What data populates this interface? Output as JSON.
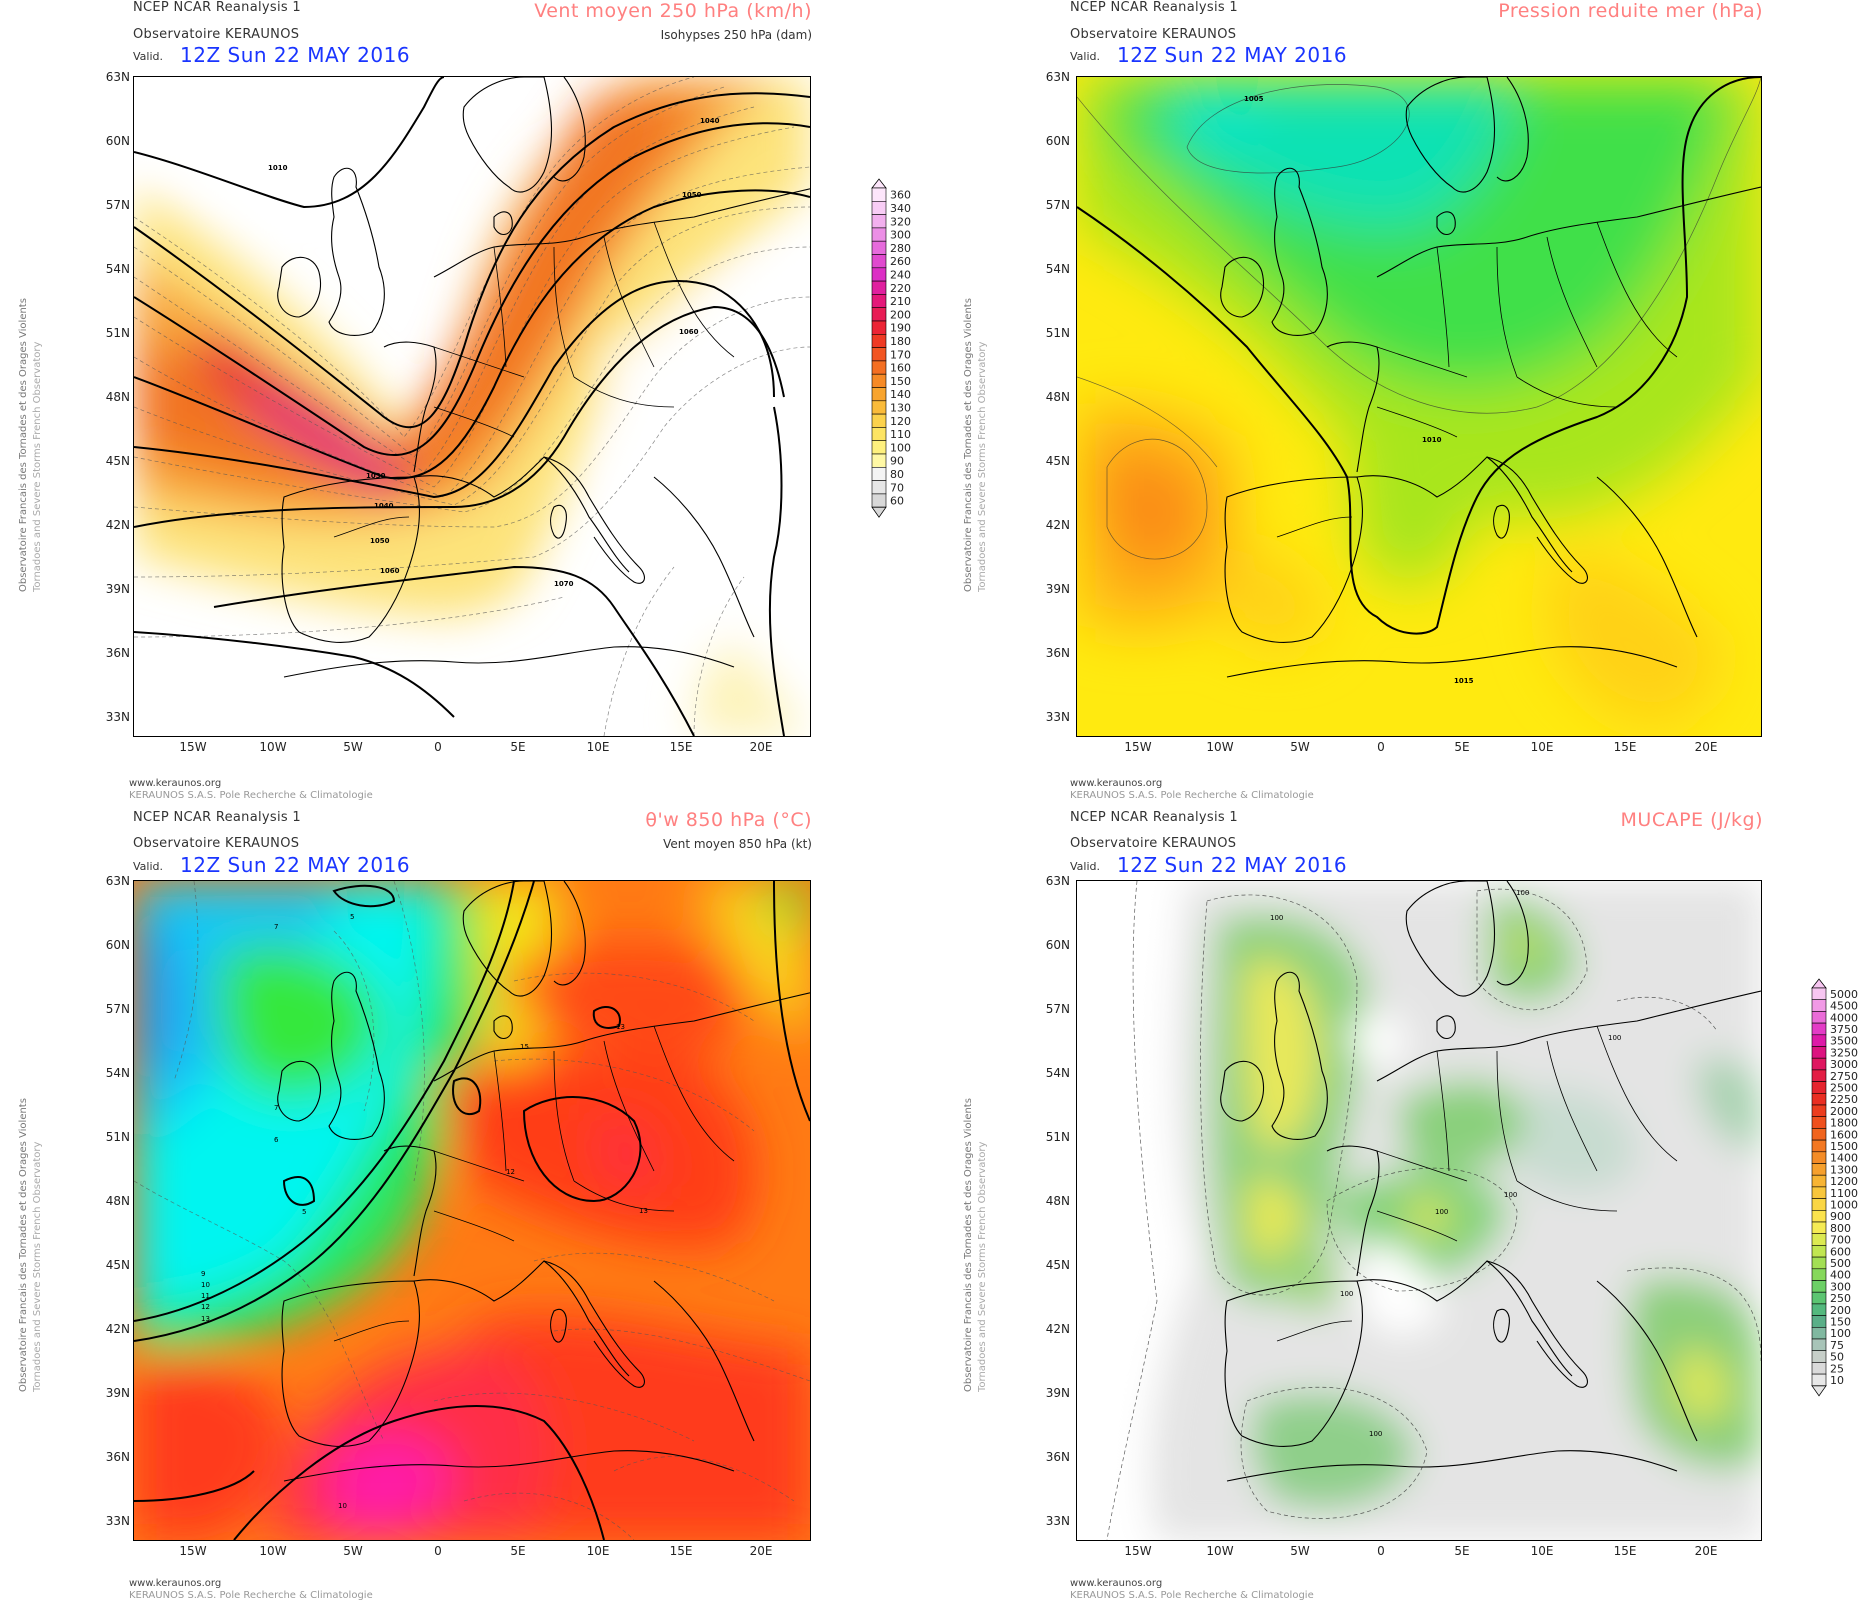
{
  "common": {
    "source_line": "NCEP NCAR Reanalysis 1",
    "observatory_line": "Observatoire KERAUNOS",
    "valid_label": "Valid.",
    "valid_time": "12Z Sun 22 MAY 2016",
    "credit_line1": "Observatoire Francais des Tornades et des Orages Violents",
    "credit_line2": "Tornadoes and Severe Storms French Observatory",
    "footer_url": "www.keraunos.org",
    "footer_org": "KERAUNOS S.A.S. Pole Recherche & Climatologie",
    "lat_labels": [
      "63N",
      "60N",
      "57N",
      "54N",
      "51N",
      "48N",
      "45N",
      "42N",
      "39N",
      "36N",
      "33N"
    ],
    "lon_labels": [
      "15W",
      "10W",
      "5W",
      "0",
      "5E",
      "10E",
      "15E",
      "20E"
    ]
  },
  "panels": [
    {
      "id": "wind250",
      "title": "Vent moyen 250 hPa (km/h)",
      "subtitle": "Isohypses 250 hPa (dam)",
      "contour_labels": [
        "1010",
        "1040",
        "1050",
        "1060",
        "1030",
        "1040",
        "1050",
        "1060",
        "1070"
      ],
      "colorbar": {
        "labels": [
          "360",
          "340",
          "320",
          "300",
          "280",
          "260",
          "240",
          "220",
          "210",
          "200",
          "190",
          "180",
          "170",
          "160",
          "150",
          "140",
          "130",
          "120",
          "110",
          "100",
          "90",
          "80",
          "70",
          "60"
        ],
        "colors": [
          "#fde6fb",
          "#f8cdf5",
          "#f2b0ee",
          "#ec8fe6",
          "#e66bdc",
          "#e04acf",
          "#dc2fc5",
          "#e0209f",
          "#e4187a",
          "#e81c55",
          "#ec2436",
          "#ef3a24",
          "#f25522",
          "#f46f22",
          "#f68a26",
          "#f8a42e",
          "#fabb3a",
          "#fcd24c",
          "#fde463",
          "#fef07e",
          "#fff8a5",
          "#f4f4f4",
          "#e6e6e6",
          "#d8d8d8"
        ]
      }
    },
    {
      "id": "mslp",
      "title": "Pression reduite mer (hPa)",
      "subtitle": "",
      "contour_labels": [
        "1005",
        "1010",
        "1015"
      ]
    },
    {
      "id": "thetaw",
      "title": "θ'w 850 hPa (°C)",
      "subtitle": "Vent moyen 850 hPa (kt)",
      "contour_labels": [
        "5",
        "7",
        "7",
        "6",
        "5",
        "9",
        "10",
        "11",
        "12",
        "13",
        "13",
        "12",
        "13",
        "15",
        "10"
      ]
    },
    {
      "id": "mucape",
      "title": "MUCAPE (J/kg)",
      "subtitle": "",
      "contour_labels": [
        "100",
        "100",
        "100",
        "100",
        "100",
        "100",
        "100"
      ],
      "colorbar": {
        "labels": [
          "5000",
          "4500",
          "4000",
          "3750",
          "3500",
          "3250",
          "3000",
          "2750",
          "2500",
          "2250",
          "2000",
          "1800",
          "1600",
          "1500",
          "1400",
          "1300",
          "1200",
          "1100",
          "1000",
          "900",
          "800",
          "700",
          "600",
          "500",
          "400",
          "300",
          "250",
          "200",
          "150",
          "100",
          "75",
          "50",
          "25",
          "10"
        ],
        "colors": [
          "#f7c6f1",
          "#f19ae6",
          "#ea6cd8",
          "#e33cc6",
          "#dd1aa8",
          "#dc1380",
          "#df1660",
          "#e31e44",
          "#e6242e",
          "#ea2e22",
          "#ec3d1e",
          "#ef501d",
          "#f1641e",
          "#f37822",
          "#f48c27",
          "#f6a02d",
          "#f7b433",
          "#f8c63b",
          "#fad644",
          "#fbe34d",
          "#f5eb54",
          "#dcea52",
          "#c1e651",
          "#a3df54",
          "#86d85b",
          "#6cd066",
          "#5cc572",
          "#54b97e",
          "#5aaf88",
          "#80b8a0",
          "#a8c4b8",
          "#c7cfc9",
          "#dadada",
          "#e8e8e8"
        ]
      }
    }
  ]
}
